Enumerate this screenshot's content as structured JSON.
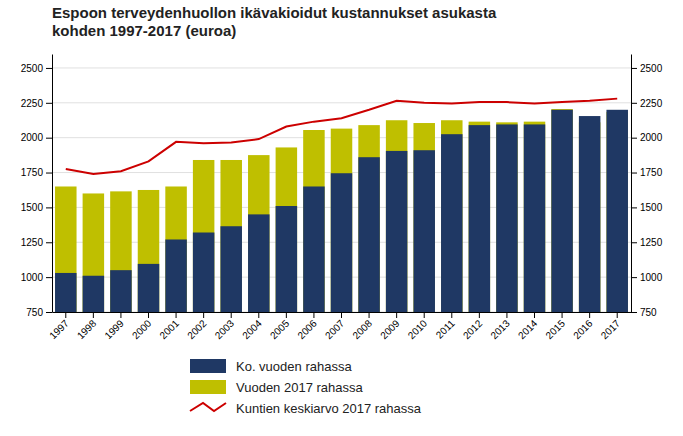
{
  "chart_data": {
    "type": "bar",
    "title": "Espoon terveydenhuollon ikävakioidut kustannukset asukasta\nkohden 1997-2017 (euroa)",
    "categories": [
      1997,
      1998,
      1999,
      2000,
      2001,
      2002,
      2003,
      2004,
      2005,
      2006,
      2007,
      2008,
      2009,
      2010,
      2011,
      2012,
      2013,
      2014,
      2015,
      2016,
      2017
    ],
    "series": [
      {
        "name": "Ko. vuoden rahassa",
        "type": "bar",
        "color": "#1F3864",
        "values": [
          1030,
          1010,
          1050,
          1095,
          1270,
          1320,
          1365,
          1450,
          1510,
          1650,
          1745,
          1860,
          1905,
          1910,
          2025,
          2090,
          2095,
          2095,
          2200,
          2155,
          2200
        ]
      },
      {
        "name": "Vuoden 2017 rahassa",
        "type": "bar",
        "color": "#BFBF00",
        "values": [
          1650,
          1600,
          1615,
          1625,
          1650,
          1840,
          1840,
          1875,
          1930,
          2055,
          2065,
          2090,
          2125,
          2105,
          2125,
          2115,
          2110,
          2115,
          2205,
          2110,
          2185
        ]
      },
      {
        "name": "Kuntien keskiarvo 2017 rahassa",
        "type": "line",
        "color": "#CC0000",
        "values": [
          1775,
          1740,
          1760,
          1830,
          1970,
          1960,
          1965,
          1990,
          2080,
          2115,
          2140,
          2200,
          2265,
          2250,
          2245,
          2255,
          2255,
          2245,
          2255,
          2265,
          2280
        ]
      }
    ],
    "ylim": [
      750,
      2600
    ],
    "yticks": [
      750,
      1000,
      1250,
      1500,
      1750,
      2000,
      2250,
      2500
    ],
    "y2lim": [
      750,
      2600
    ],
    "y2ticks": [
      750,
      1000,
      1250,
      1500,
      1750,
      2000,
      2250,
      2500
    ],
    "grid": true,
    "legend": "bottom"
  }
}
